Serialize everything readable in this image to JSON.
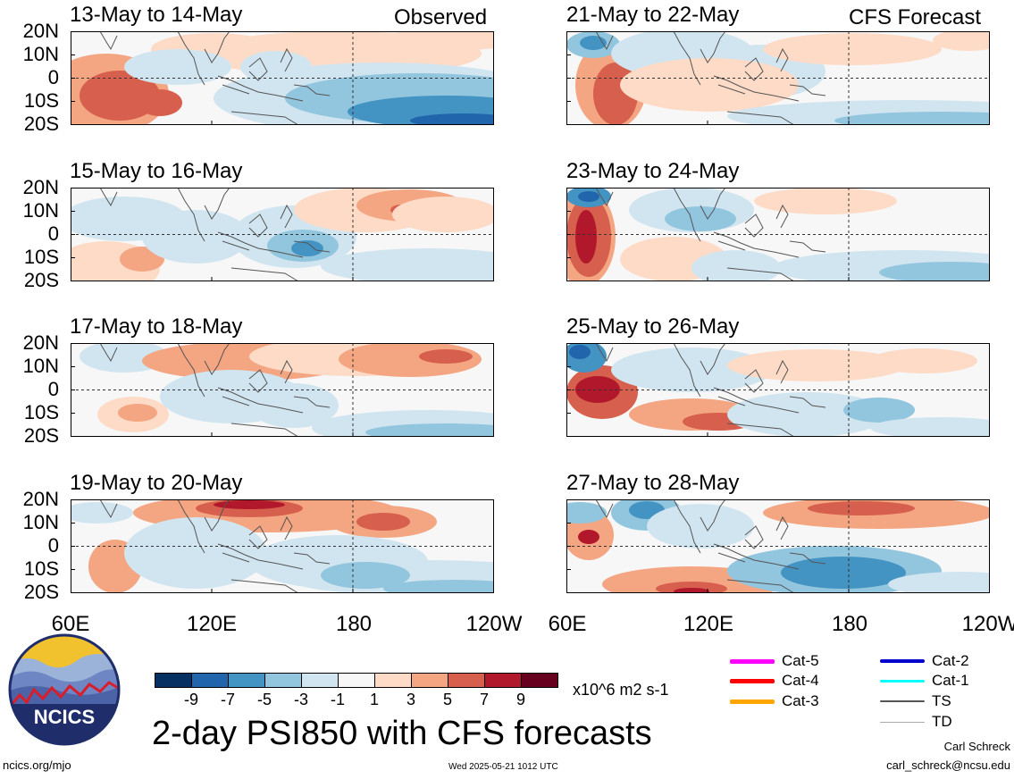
{
  "chart_data": {
    "type": "heatmap",
    "title": "2-day PSI850 with CFS forecasts",
    "field": "PSI850",
    "units": "x10^6 m2 s-1",
    "lat_ticks": [
      "20N",
      "10N",
      "0",
      "10S",
      "20S"
    ],
    "lon_ticks": [
      "60E",
      "120E",
      "180",
      "120W"
    ],
    "lat_range": [
      -20,
      20
    ],
    "lon_range": [
      60,
      240
    ],
    "colorbar": {
      "ticks": [
        "-9",
        "-7",
        "-5",
        "-3",
        "-1",
        "1",
        "3",
        "5",
        "7",
        "9"
      ],
      "colors": [
        "#053061",
        "#2166ac",
        "#4393c3",
        "#92c5de",
        "#d1e5f0",
        "#f7f7f7",
        "#fddbc7",
        "#f4a582",
        "#d6604d",
        "#b2182b",
        "#67001f"
      ]
    },
    "columns": [
      {
        "label": "Observed",
        "panels": [
          {
            "title": "13-May to 14-May"
          },
          {
            "title": "15-May to 16-May"
          },
          {
            "title": "17-May to 18-May"
          },
          {
            "title": "19-May to 20-May"
          }
        ]
      },
      {
        "label": "CFS Forecast",
        "panels": [
          {
            "title": "21-May to 22-May"
          },
          {
            "title": "23-May to 24-May"
          },
          {
            "title": "25-May to 26-May"
          },
          {
            "title": "27-May to 28-May"
          }
        ]
      }
    ]
  },
  "legend": {
    "items": [
      {
        "label": "Cat-5",
        "color": "#ff00ff"
      },
      {
        "label": "Cat-4",
        "color": "#ff0000"
      },
      {
        "label": "Cat-3",
        "color": "#ffa500"
      },
      {
        "label": "Cat-2",
        "color": "#0000cc"
      },
      {
        "label": "Cat-1",
        "color": "#00ffff"
      },
      {
        "label": "TS",
        "color": "#555555"
      },
      {
        "label": "TD",
        "color": "#aaaaaa"
      }
    ]
  },
  "branding": {
    "logo_text": "NCICS",
    "site": "ncics.org/mjo",
    "timestamp": "Wed 2025-05-21 1012 UTC",
    "author": "Carl Schreck",
    "email": "carl_schreck@ncsu.edu"
  }
}
